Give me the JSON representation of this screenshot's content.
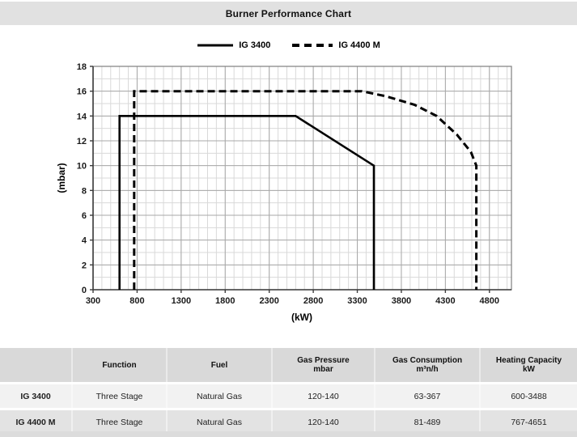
{
  "header": {
    "title": "Burner Performance Chart"
  },
  "colors": {
    "title_bar_bg": "#e1e1e1",
    "series_color": "#000000",
    "minor_grid": "#d9d9d9",
    "major_grid": "#a8a8a8",
    "plot_border": "#7f7f7f",
    "axis_line": "#3c3c3c",
    "table_header_bg": "#d9d9d9",
    "table_row_light_bg": "#f2f2f2",
    "table_row_dark_bg": "#e3e3e3"
  },
  "chart_data": {
    "type": "line",
    "title": "Burner Performance Chart",
    "xlabel": "(kW)",
    "ylabel": "(mbar)",
    "xlim": [
      300,
      5050
    ],
    "ylim": [
      0,
      18
    ],
    "x_ticks": [
      300,
      800,
      1300,
      1800,
      2300,
      2800,
      3300,
      3800,
      4300,
      4800
    ],
    "y_ticks": [
      0,
      2,
      4,
      6,
      8,
      10,
      12,
      14,
      16,
      18
    ],
    "x_minor_step": 100,
    "y_minor_step": 1,
    "grid": true,
    "legend_position": "top-center",
    "series": [
      {
        "name": "IG 3400",
        "style": "solid",
        "color": "#000000",
        "points": [
          [
            600,
            0
          ],
          [
            600,
            14
          ],
          [
            2600,
            14
          ],
          [
            3488,
            10
          ],
          [
            3488,
            0
          ]
        ]
      },
      {
        "name": "IG 4400 M",
        "style": "dashed",
        "color": "#000000",
        "points": [
          [
            767,
            0
          ],
          [
            767,
            16
          ],
          [
            3350,
            16
          ],
          [
            3620,
            15.6
          ],
          [
            3950,
            14.9
          ],
          [
            4200,
            14
          ],
          [
            4430,
            12.5
          ],
          [
            4590,
            11.1
          ],
          [
            4651,
            10
          ],
          [
            4651,
            0
          ]
        ]
      }
    ]
  },
  "table": {
    "columns": [
      {
        "label": "",
        "sublabel": ""
      },
      {
        "label": "Function",
        "sublabel": ""
      },
      {
        "label": "Fuel",
        "sublabel": ""
      },
      {
        "label": "Gas Pressure",
        "sublabel": "mbar"
      },
      {
        "label": "Gas Consumption",
        "sublabel": "m³n/h"
      },
      {
        "label": "Heating Capacity",
        "sublabel": "kW"
      }
    ],
    "rows": [
      {
        "name": "IG 3400",
        "function": "Three Stage",
        "fuel": "Natural Gas",
        "gas_pressure": "120-140",
        "gas_consumption": "63-367",
        "heating_capacity": "600-3488"
      },
      {
        "name": "IG 4400 M",
        "function": "Three Stage",
        "fuel": "Natural Gas",
        "gas_pressure": "120-140",
        "gas_consumption": "81-489",
        "heating_capacity": "767-4651"
      }
    ]
  }
}
